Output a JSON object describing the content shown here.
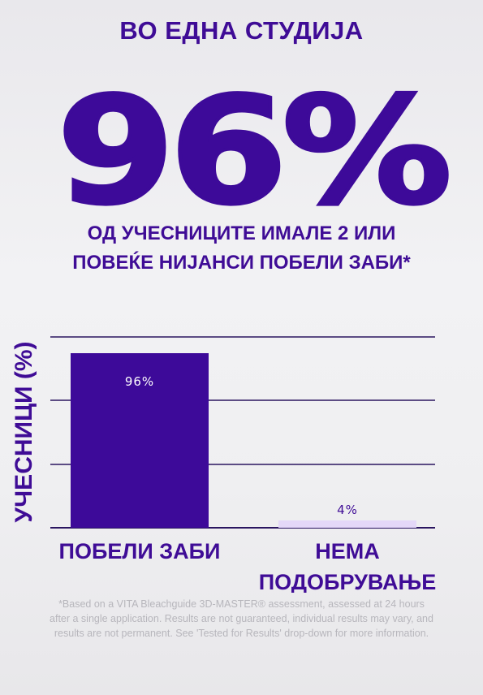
{
  "headline": "ВО ЕДНА СТУДИЈА",
  "big_stat": "96%",
  "subhead": "ОД УЧЕСНИЦИТЕ ИМАЛЕ 2 ИЛИ ПОВЕЌЕ НИЈАНСИ ПОБЕЛИ ЗАБИ*",
  "footnote": "*Based on a VITA Bleachguide 3D-MASTER® assessment, assessed at 24 hours after a single application. Results are not guaranteed, individual results may vary, and results are not permanent. See 'Tested for Results' drop-down for more information.",
  "colors": {
    "primary": "#3f0c96",
    "bar_primary": "#3d0a99",
    "bar_secondary": "#e4d8f8",
    "gridline": "#2a1560",
    "footnote": "#b7b6bc"
  },
  "chart_data": {
    "type": "bar",
    "title": "",
    "xlabel": "",
    "ylabel": "УЧЕСНИЦИ (%)",
    "ylim": [
      0,
      100
    ],
    "grid": true,
    "categories": [
      "ПОБЕЛИ ЗАБИ",
      "НЕМА ПОДОБРУВАЊЕ"
    ],
    "values": [
      96,
      4
    ],
    "data_labels": [
      "96%",
      "4%"
    ],
    "bar_colors": [
      "#3d0a99",
      "#e4d8f8"
    ],
    "label_colors": [
      "#ffffff",
      "#3f0c96"
    ]
  }
}
